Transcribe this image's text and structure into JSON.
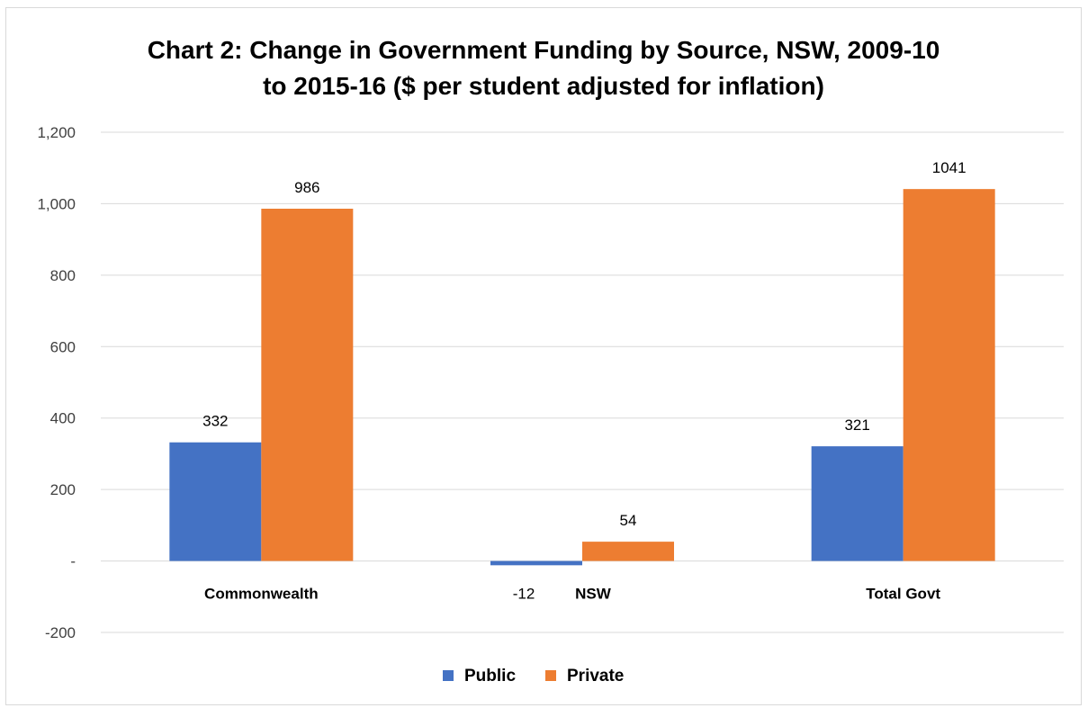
{
  "chart_data": {
    "type": "bar",
    "title_lines": [
      "Chart 2: Change in Government Funding by Source, NSW, 2009-10",
      "to 2015-16 ($ per student adjusted for inflation)"
    ],
    "categories": [
      "Commonwealth",
      "NSW",
      "Total Govt"
    ],
    "series": [
      {
        "name": "Public",
        "values": [
          332,
          -12,
          321
        ],
        "labels": [
          "332",
          "-12",
          "321"
        ],
        "color": "#4472C4"
      },
      {
        "name": "Private",
        "values": [
          986,
          54,
          1041
        ],
        "labels": [
          "986",
          "54",
          "1041"
        ],
        "color": "#ED7D31"
      }
    ],
    "ylim": [
      -200,
      1200
    ],
    "yticks": [
      {
        "value": 1200,
        "label": "1,200"
      },
      {
        "value": 1000,
        "label": "1,000"
      },
      {
        "value": 800,
        "label": "800"
      },
      {
        "value": 600,
        "label": "600"
      },
      {
        "value": 400,
        "label": "400"
      },
      {
        "value": 200,
        "label": "200"
      },
      {
        "value": 0,
        "label": "-"
      },
      {
        "value": -200,
        "label": "-200"
      }
    ],
    "grid": true,
    "legend_position": "bottom"
  }
}
